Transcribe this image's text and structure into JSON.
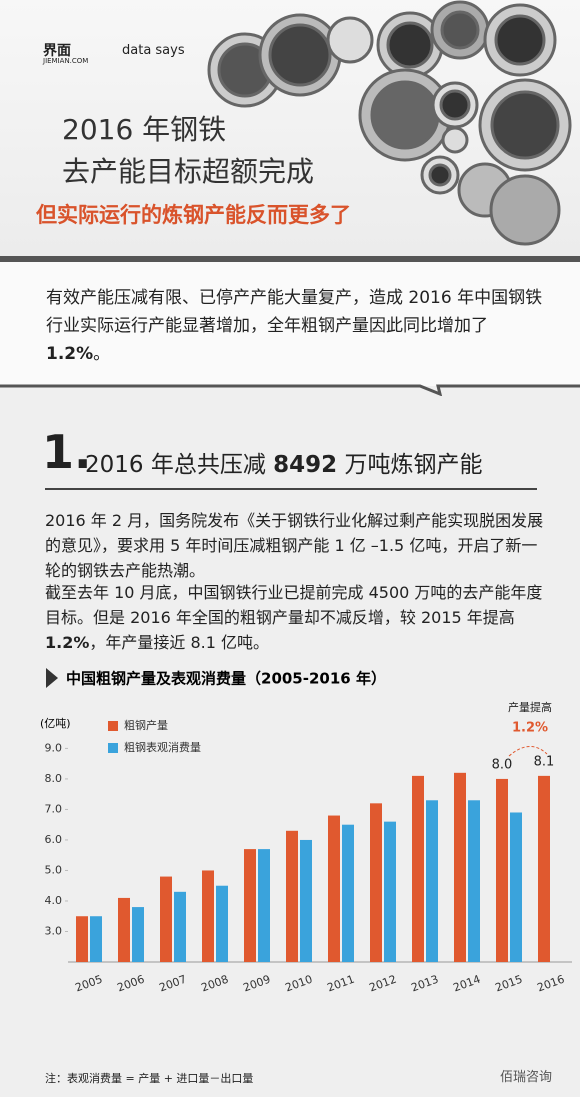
{
  "header": {
    "logo_1": "界面",
    "logo_1_sub": "JIEMIAN.COM",
    "logo_2": "data says",
    "title_line_1": "2016 年钢铁",
    "title_line_2": "去产能目标超额完成",
    "subtitle": "但实际运行的炼钢产能反而更多了"
  },
  "intro": {
    "text_1": "有效产能压减有限、已停产产能大量复产，造成 2016 年中国钢铁行业实际运行产能显著增加，全年粗钢产量因此同比增加了",
    "bold": "1.2%",
    "text_2": "。"
  },
  "section": {
    "number": "1.",
    "heading_1": "2016 年总共压减",
    "heading_bold": "8492",
    "heading_2": "万吨炼钢产能",
    "paragraph_1": "2016 年 2 月，国务院发布《关于钢铁行业化解过剩产能实现脱困发展的意见》，要求用 5 年时间压减粗钢产能 1 亿 –1.5 亿吨，开启了新一轮的钢铁去产能热潮。",
    "paragraph_2": {
      "text_1": "截至去年 10 月底，中国钢铁行业已提前完成 4500 万吨的去产能年度目标。但是 2016 年全国的粗钢产量却不减反增，较 2015 年提高",
      "bold": "1.2%",
      "text_2": "，年产量接近 8.1 亿吨。"
    }
  },
  "chart_data": {
    "type": "bar",
    "title": "中国粗钢产量及表观消费量（2005-2016 年）",
    "y_label": "(亿吨)",
    "categories": [
      "2005",
      "2006",
      "2007",
      "2008",
      "2009",
      "2010",
      "2011",
      "2012",
      "2013",
      "2014",
      "2015",
      "2016"
    ],
    "series": [
      {
        "name": "粗钢产量",
        "color": "#e0592f",
        "values": [
          3.5,
          4.1,
          4.8,
          5.0,
          5.7,
          6.3,
          6.8,
          7.2,
          8.1,
          8.2,
          8.0,
          8.1
        ],
        "value_labels": [
          null,
          null,
          null,
          null,
          null,
          null,
          null,
          null,
          null,
          null,
          "8.0",
          "8.1"
        ]
      },
      {
        "name": "粗钢表观消费量",
        "color": "#3aa3dc",
        "values": [
          3.5,
          3.8,
          4.3,
          4.5,
          5.7,
          6.0,
          6.5,
          6.6,
          7.3,
          7.3,
          6.9,
          null
        ]
      }
    ],
    "ylim": [
      2.0,
      9.8
    ],
    "yticks": [
      {
        "value": 3,
        "label": "3.0"
      },
      {
        "value": 4,
        "label": "4.0"
      },
      {
        "value": 5,
        "label": "5.0"
      },
      {
        "value": 6,
        "label": "6.0"
      },
      {
        "value": 7,
        "label": "7.0"
      },
      {
        "value": 8,
        "label": "8.0"
      },
      {
        "value": 9,
        "label": "9.0"
      }
    ],
    "grid": false,
    "legend": "top-left",
    "annotations": [
      "产量提高",
      "1.2%"
    ]
  },
  "note": "注：表观消费量 = 产量 + 进口量－出口量",
  "watermark": "佰瑞咨询"
}
